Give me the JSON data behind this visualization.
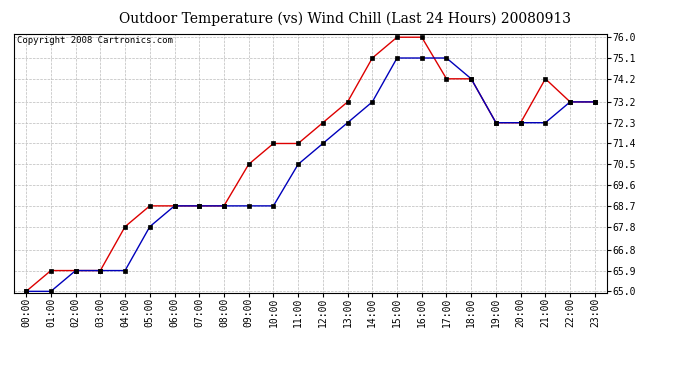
{
  "title": "Outdoor Temperature (vs) Wind Chill (Last 24 Hours) 20080913",
  "copyright": "Copyright 2008 Cartronics.com",
  "x_labels": [
    "00:00",
    "01:00",
    "02:00",
    "03:00",
    "04:00",
    "05:00",
    "06:00",
    "07:00",
    "08:00",
    "09:00",
    "10:00",
    "11:00",
    "12:00",
    "13:00",
    "14:00",
    "15:00",
    "16:00",
    "17:00",
    "18:00",
    "19:00",
    "20:00",
    "21:00",
    "22:00",
    "23:00"
  ],
  "temp_red": [
    65.0,
    65.9,
    65.9,
    65.9,
    67.8,
    68.7,
    68.7,
    68.7,
    68.7,
    70.5,
    71.4,
    71.4,
    72.3,
    73.2,
    75.1,
    76.0,
    76.0,
    74.2,
    74.2,
    72.3,
    72.3,
    74.2,
    73.2,
    73.2
  ],
  "wind_chill_blue": [
    65.0,
    65.0,
    65.9,
    65.9,
    65.9,
    67.8,
    68.7,
    68.7,
    68.7,
    68.7,
    68.7,
    70.5,
    71.4,
    72.3,
    73.2,
    75.1,
    75.1,
    75.1,
    74.2,
    72.3,
    72.3,
    72.3,
    73.2,
    73.2
  ],
  "y_ticks": [
    65.0,
    65.9,
    66.8,
    67.8,
    68.7,
    69.6,
    70.5,
    71.4,
    72.3,
    73.2,
    74.2,
    75.1,
    76.0
  ],
  "ylim": [
    65.0,
    76.0
  ],
  "red_color": "#dd0000",
  "blue_color": "#0000bb",
  "grid_color": "#bbbbbb",
  "bg_color": "#ffffff",
  "plot_bg_color": "#ffffff",
  "title_fontsize": 10,
  "copyright_fontsize": 6.5,
  "tick_fontsize": 7,
  "marker_size": 3,
  "line_width": 1.0
}
